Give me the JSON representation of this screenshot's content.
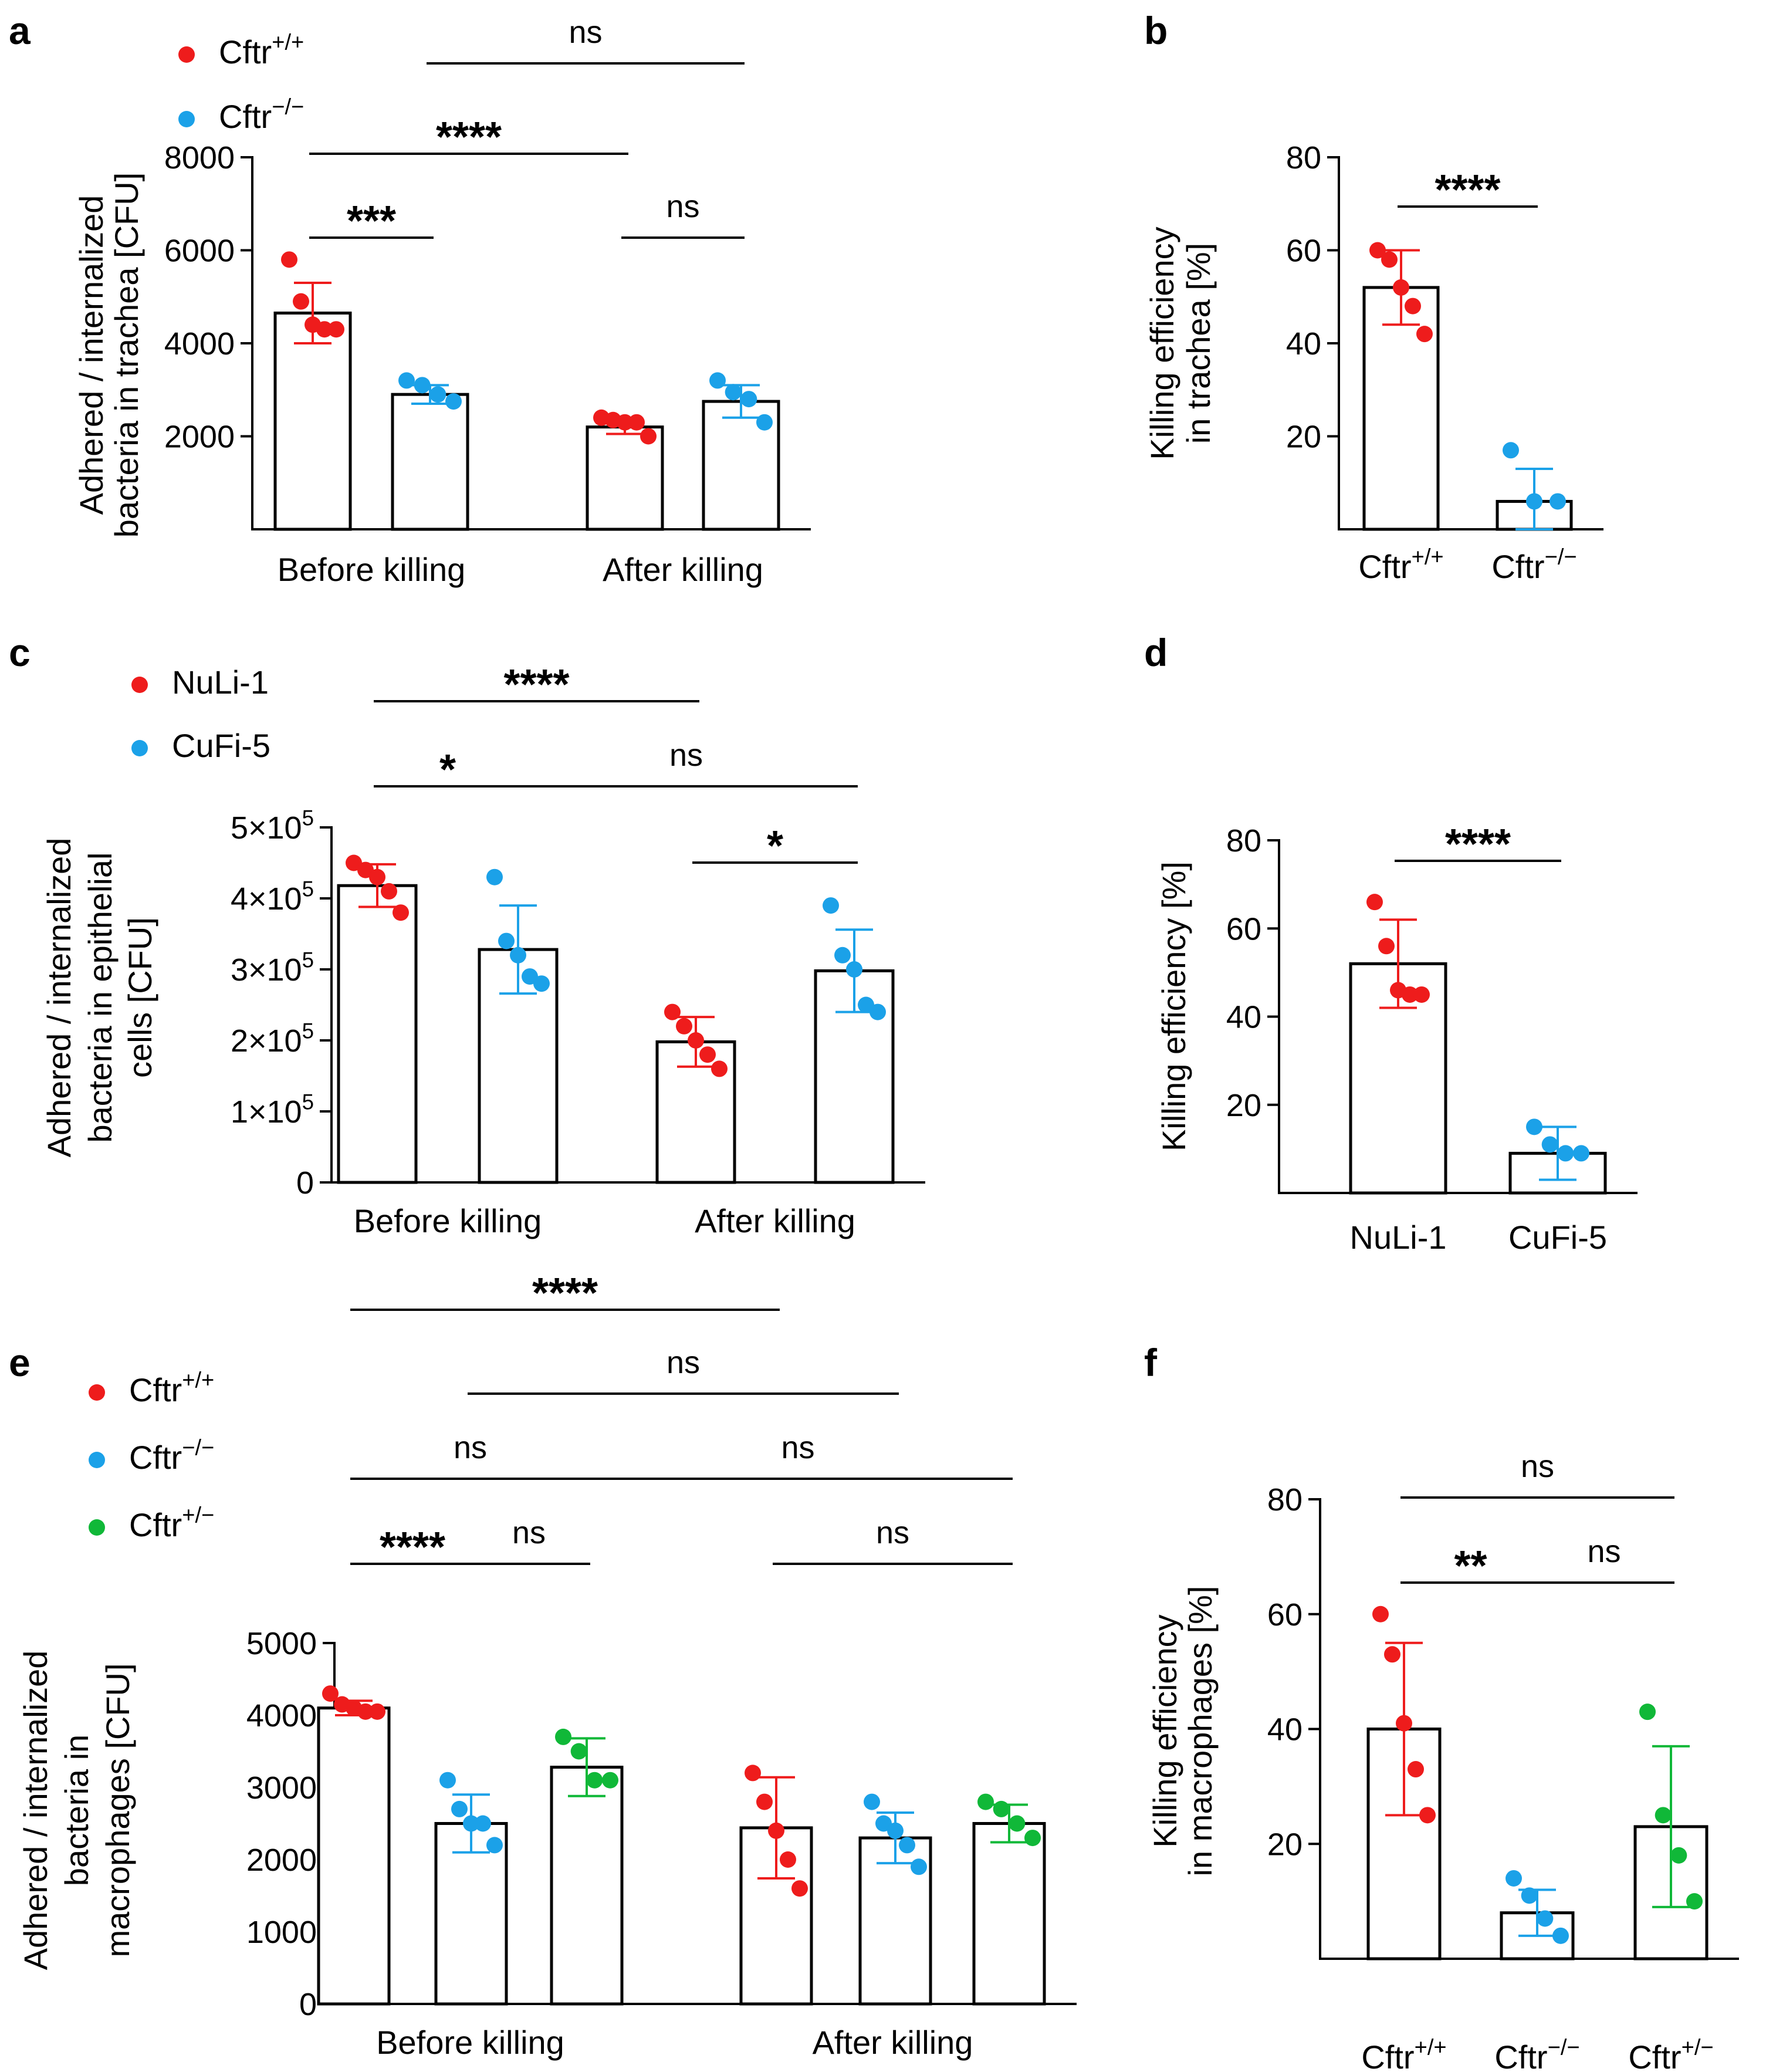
{
  "colors": {
    "red": "#EE1C1C",
    "blue": "#1BA1E8",
    "green": "#10B838",
    "axis": "#000000"
  },
  "chart_data": [
    {
      "panel": "a",
      "type": "bar",
      "ylabel": [
        "Adhered / internalized",
        "bacteria in trachea [CFU]"
      ],
      "ylim": [
        0,
        8000
      ],
      "yticks": [
        {
          "v": 2000,
          "label": "2000"
        },
        {
          "v": 4000,
          "label": "4000"
        },
        {
          "v": 6000,
          "label": "6000"
        },
        {
          "v": 8000,
          "label": "8000"
        }
      ],
      "groups": [
        {
          "label": "Before killing",
          "bars": [
            {
              "series": 0,
              "mean": 4650,
              "sd": 650,
              "points": [
                5800,
                4900,
                4400,
                4300,
                4300
              ]
            },
            {
              "series": 1,
              "mean": 2900,
              "sd": 200,
              "points": [
                3200,
                3100,
                2900,
                2750
              ]
            }
          ]
        },
        {
          "label": "After killing",
          "bars": [
            {
              "series": 0,
              "mean": 2200,
              "sd": 150,
              "points": [
                2400,
                2350,
                2300,
                2300,
                2000
              ]
            },
            {
              "series": 1,
              "mean": 2750,
              "sd": 350,
              "points": [
                3200,
                2950,
                2800,
                2300
              ]
            }
          ]
        }
      ],
      "legend": [
        {
          "base": "Cftr",
          "sup": "+/+",
          "color": "red"
        },
        {
          "base": "Cftr",
          "sup": "−/−",
          "color": "blue"
        }
      ],
      "significance": [
        {
          "text": "ns",
          "from": [
            0,
            1
          ],
          "to": [
            1,
            1
          ],
          "level": 2
        },
        {
          "text": "****",
          "from": [
            0,
            0
          ],
          "to": [
            1,
            0
          ],
          "level": 1
        },
        {
          "text": "***",
          "from": [
            0,
            0
          ],
          "to": [
            0,
            1
          ],
          "level": 0
        },
        {
          "text": "ns",
          "from": [
            1,
            0
          ],
          "to": [
            1,
            1
          ],
          "level": 0
        }
      ]
    },
    {
      "panel": "b",
      "type": "bar",
      "ylabel": [
        "Killing efficiency",
        "in trachea [%]"
      ],
      "ylim": [
        0,
        80
      ],
      "yticks": [
        {
          "v": 20,
          "label": "20"
        },
        {
          "v": 40,
          "label": "40"
        },
        {
          "v": 60,
          "label": "60"
        },
        {
          "v": 80,
          "label": "80"
        }
      ],
      "groups": [
        {
          "base": "Cftr",
          "sup": "+/+",
          "bars": [
            {
              "series": 0,
              "mean": 52,
              "sd": 8,
              "points": [
                60,
                58,
                52,
                48,
                42
              ]
            }
          ]
        },
        {
          "base": "Cftr",
          "sup": "−/−",
          "bars": [
            {
              "series": 1,
              "mean": 6,
              "sd": 7,
              "points": [
                17,
                6,
                6
              ]
            }
          ]
        }
      ],
      "significance": [
        {
          "text": "****",
          "from": [
            0,
            0
          ],
          "to": [
            1,
            0
          ],
          "level": 0
        }
      ]
    },
    {
      "panel": "c",
      "type": "bar",
      "ylabel": [
        "Adhered / internalized",
        "bacteria in epithelial",
        "cells [CFU]"
      ],
      "ylim": [
        0,
        500000
      ],
      "yticks": [
        {
          "v": 0,
          "label": "0"
        },
        {
          "v": 100000,
          "label": "1×10",
          "sup": "5"
        },
        {
          "v": 200000,
          "label": "2×10",
          "sup": "5"
        },
        {
          "v": 300000,
          "label": "3×10",
          "sup": "5"
        },
        {
          "v": 400000,
          "label": "4×10",
          "sup": "5"
        },
        {
          "v": 500000,
          "label": "5×10",
          "sup": "5"
        }
      ],
      "groups": [
        {
          "label": "Before killing",
          "bars": [
            {
              "series": 0,
              "mean": 418000,
              "sd": 30000,
              "points": [
                450000,
                440000,
                430000,
                410000,
                380000
              ]
            },
            {
              "series": 1,
              "mean": 328000,
              "sd": 62000,
              "points": [
                430000,
                340000,
                320000,
                290000,
                280000
              ]
            }
          ]
        },
        {
          "label": "After killing",
          "bars": [
            {
              "series": 0,
              "mean": 198000,
              "sd": 35000,
              "points": [
                240000,
                220000,
                200000,
                180000,
                160000
              ]
            },
            {
              "series": 1,
              "mean": 298000,
              "sd": 58000,
              "points": [
                390000,
                320000,
                300000,
                250000,
                240000
              ]
            }
          ]
        }
      ],
      "legend": [
        {
          "base": "NuLi-1",
          "color": "red"
        },
        {
          "base": "CuFi-5",
          "color": "blue"
        }
      ],
      "significance": [
        {
          "text": "****",
          "from": [
            0,
            0
          ],
          "to": [
            1,
            0
          ],
          "level": 2
        },
        {
          "text": "*",
          "from": [
            0,
            0
          ],
          "to": [
            0,
            1
          ],
          "level": 1
        },
        {
          "text": "ns",
          "from": [
            0,
            1
          ],
          "to": [
            1,
            1
          ],
          "level": 1
        },
        {
          "text": "*",
          "from": [
            1,
            0
          ],
          "to": [
            1,
            1
          ],
          "level": 0
        }
      ]
    },
    {
      "panel": "d",
      "type": "bar",
      "ylabel": [
        "Killing efficiency [%]"
      ],
      "ylim": [
        0,
        80
      ],
      "yticks": [
        {
          "v": 20,
          "label": "20"
        },
        {
          "v": 40,
          "label": "40"
        },
        {
          "v": 60,
          "label": "60"
        },
        {
          "v": 80,
          "label": "80"
        }
      ],
      "groups": [
        {
          "base": "NuLi-1",
          "bars": [
            {
              "series": 0,
              "mean": 52,
              "sd": 10,
              "points": [
                66,
                56,
                46,
                45,
                45
              ]
            }
          ]
        },
        {
          "base": "CuFi-5",
          "bars": [
            {
              "series": 1,
              "mean": 9,
              "sd": 6,
              "points": [
                15,
                11,
                9,
                9
              ]
            }
          ]
        }
      ],
      "significance": [
        {
          "text": "****",
          "from": [
            0,
            0
          ],
          "to": [
            1,
            0
          ],
          "level": 0
        }
      ]
    },
    {
      "panel": "e",
      "type": "bar",
      "ylabel": [
        "Adhered / internalized",
        "bacteria in",
        "macrophages [CFU]"
      ],
      "ylim": [
        0,
        5000
      ],
      "yticks": [
        {
          "v": 0,
          "label": "0"
        },
        {
          "v": 1000,
          "label": "1000"
        },
        {
          "v": 2000,
          "label": "2000"
        },
        {
          "v": 3000,
          "label": "3000"
        },
        {
          "v": 4000,
          "label": "4000"
        },
        {
          "v": 5000,
          "label": "5000"
        }
      ],
      "groups": [
        {
          "label": "Before killing",
          "bars": [
            {
              "series": 0,
              "mean": 4100,
              "sd": 100,
              "points": [
                4300,
                4150,
                4100,
                4050,
                4050
              ]
            },
            {
              "series": 1,
              "mean": 2500,
              "sd": 400,
              "points": [
                3100,
                2700,
                2500,
                2500,
                2200
              ]
            },
            {
              "series": 2,
              "mean": 3280,
              "sd": 400,
              "points": [
                3700,
                3500,
                3100,
                3100
              ]
            }
          ]
        },
        {
          "label": "After killing",
          "bars": [
            {
              "series": 0,
              "mean": 2440,
              "sd": 700,
              "points": [
                3200,
                2800,
                2400,
                2000,
                1600
              ]
            },
            {
              "series": 1,
              "mean": 2300,
              "sd": 350,
              "points": [
                2800,
                2500,
                2400,
                2200,
                1900
              ]
            },
            {
              "series": 2,
              "mean": 2500,
              "sd": 260,
              "points": [
                2800,
                2700,
                2500,
                2300
              ]
            }
          ]
        }
      ],
      "legend": [
        {
          "base": "Cftr",
          "sup": "+/+",
          "color": "red"
        },
        {
          "base": "Cftr",
          "sup": "−/−",
          "color": "blue"
        },
        {
          "base": "Cftr",
          "sup": "+/−",
          "color": "green"
        }
      ],
      "significance": [
        {
          "text": "****",
          "from": [
            0,
            0
          ],
          "to": [
            1,
            0
          ],
          "level": 4
        },
        {
          "text": "ns",
          "from": [
            0,
            1
          ],
          "to": [
            1,
            1
          ],
          "level": 3
        },
        {
          "text": "ns",
          "from": [
            0,
            0
          ],
          "to": [
            0,
            2
          ],
          "level": 2
        },
        {
          "text": "ns",
          "from": [
            0,
            2
          ],
          "to": [
            1,
            2
          ],
          "level": 2
        },
        {
          "text": "****",
          "from": [
            0,
            0
          ],
          "to": [
            0,
            1
          ],
          "level": 1
        },
        {
          "text": "ns",
          "from": [
            0,
            1
          ],
          "to": [
            0,
            2
          ],
          "level": 1
        },
        {
          "text": "ns",
          "from": [
            1,
            0
          ],
          "to": [
            1,
            2
          ],
          "level": 1
        }
      ]
    },
    {
      "panel": "f",
      "type": "bar",
      "ylabel": [
        "Killing efficiency",
        "in macrophages [%]"
      ],
      "ylim": [
        0,
        80
      ],
      "yticks": [
        {
          "v": 20,
          "label": "20"
        },
        {
          "v": 40,
          "label": "40"
        },
        {
          "v": 60,
          "label": "60"
        },
        {
          "v": 80,
          "label": "80"
        }
      ],
      "groups": [
        {
          "base": "Cftr",
          "sup": "+/+",
          "bars": [
            {
              "series": 0,
              "mean": 40,
              "sd": 15,
              "points": [
                60,
                53,
                41,
                33,
                25
              ]
            }
          ]
        },
        {
          "base": "Cftr",
          "sup": "−/−",
          "bars": [
            {
              "series": 1,
              "mean": 8,
              "sd": 4,
              "points": [
                14,
                11,
                7,
                4
              ]
            }
          ]
        },
        {
          "base": "Cftr",
          "sup": "+/−",
          "bars": [
            {
              "series": 2,
              "mean": 23,
              "sd": 14,
              "points": [
                43,
                25,
                18,
                10
              ]
            }
          ]
        }
      ],
      "significance": [
        {
          "text": "ns",
          "from": [
            0,
            0
          ],
          "to": [
            2,
            0
          ],
          "level": 1
        },
        {
          "text": "**",
          "from": [
            0,
            0
          ],
          "to": [
            1,
            0
          ],
          "level": 0
        },
        {
          "text": "ns",
          "from": [
            1,
            0
          ],
          "to": [
            2,
            0
          ],
          "level": 0
        }
      ]
    }
  ]
}
